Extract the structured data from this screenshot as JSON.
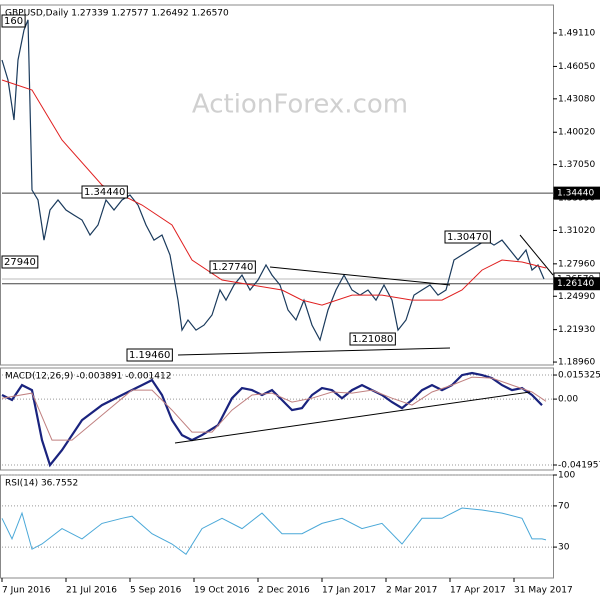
{
  "watermark": "ActionForex.com",
  "chart_data": [
    {
      "type": "line",
      "title": "GBPUSD,Daily  1.27339 1.27577 1.26492 1.26570",
      "ylim": [
        1.1869,
        1.5168
      ],
      "yticks": [
        {
          "value": 1.1896,
          "label": "1.18960"
        },
        {
          "value": 1.2193,
          "label": "1.21930"
        },
        {
          "value": 1.2499,
          "label": "1.24990"
        },
        {
          "value": 1.2796,
          "label": "1.27960"
        },
        {
          "value": 1.3102,
          "label": "1.31020"
        },
        {
          "value": 1.3399,
          "label": "1.33990"
        },
        {
          "value": 1.3705,
          "label": "1.37050"
        },
        {
          "value": 1.4002,
          "label": "1.40020"
        },
        {
          "value": 1.4308,
          "label": "1.43080"
        },
        {
          "value": 1.4605,
          "label": "1.46050"
        },
        {
          "value": 1.4911,
          "label": "1.49110"
        }
      ],
      "levels": [
        {
          "value": 1.3444,
          "label": "1.34440",
          "color": "#000000"
        },
        {
          "value": 1.2657,
          "label": "1.26570",
          "color": "#ffffff"
        },
        {
          "value": 1.2614,
          "label": "1.26140",
          "color": "#000000"
        }
      ],
      "annotations": [
        "160",
        "1.34440",
        "27940",
        "1.27740",
        "1.19460",
        "1.21080",
        "1.30470"
      ],
      "series": [
        {
          "name": "GBPUSD",
          "color": "#1a3a5c",
          "width": 1.2,
          "x": [
            0,
            3,
            6,
            8,
            11,
            13,
            15,
            18,
            21,
            24,
            28,
            32,
            36,
            40,
            44,
            48,
            52,
            56,
            60,
            64,
            68,
            72,
            76,
            80,
            84,
            88,
            90,
            93,
            97,
            101,
            105,
            109,
            112,
            116,
            120,
            124,
            128,
            132,
            135,
            139,
            143,
            147,
            151,
            155,
            159,
            163,
            167,
            171,
            175,
            179,
            183,
            187,
            191,
            195,
            198,
            202,
            206,
            210,
            214,
            218,
            222,
            226,
            230,
            234,
            238,
            242,
            246,
            250,
            254,
            258,
            262,
            265,
            268,
            271
          ],
          "values": [
            1.4664,
            1.4481,
            1.4114,
            1.4664,
            1.4939,
            1.5031,
            1.3473,
            1.3381,
            1.3014,
            1.3289,
            1.3381,
            1.3289,
            1.3243,
            1.3198,
            1.306,
            1.3152,
            1.3381,
            1.3289,
            1.3381,
            1.3427,
            1.3335,
            1.3152,
            1.3014,
            1.306,
            1.2877,
            1.2464,
            1.2189,
            1.2281,
            1.2189,
            1.2235,
            1.2327,
            1.2556,
            1.2464,
            1.2602,
            1.2693,
            1.2556,
            1.2648,
            1.2785,
            1.2693,
            1.2602,
            1.2373,
            1.2281,
            1.2464,
            1.2235,
            1.2098,
            1.2373,
            1.2556,
            1.2693,
            1.2556,
            1.251,
            1.2556,
            1.2464,
            1.2602,
            1.2464,
            1.2189,
            1.2281,
            1.251,
            1.2556,
            1.2602,
            1.251,
            1.2556,
            1.2831,
            1.2877,
            1.2923,
            1.2968,
            1.3014,
            1.2968,
            1.3014,
            1.2923,
            1.2831,
            1.2923,
            1.2739,
            1.2785,
            1.2657
          ]
        },
        {
          "name": "MA",
          "color": "#e02020",
          "width": 1,
          "x": [
            0,
            15,
            30,
            50,
            70,
            85,
            95,
            110,
            125,
            140,
            150,
            160,
            175,
            190,
            205,
            220,
            230,
            240,
            250,
            260,
            272
          ],
          "values": [
            1.4481,
            1.4389,
            1.3931,
            1.3518,
            1.3335,
            1.3152,
            1.2831,
            1.2648,
            1.2602,
            1.2556,
            1.2464,
            1.2418,
            1.251,
            1.251,
            1.2464,
            1.2464,
            1.2556,
            1.2739,
            1.2831,
            1.2813,
            1.2758
          ]
        }
      ]
    },
    {
      "type": "line",
      "title": "MACD(12,26,9) -0.003891 -0.001412",
      "ylim": [
        -0.04514,
        0.0198
      ],
      "yticks": [
        0.015325,
        {
          "value": 0,
          "label": "0.00"
        },
        -0.041957
      ],
      "series": [
        {
          "name": "MACD",
          "color": "#1a237e",
          "width": 2.2,
          "x": [
            0,
            5,
            10,
            15,
            20,
            24,
            30,
            40,
            50,
            60,
            70,
            75,
            80,
            85,
            90,
            95,
            100,
            108,
            115,
            120,
            125,
            130,
            135,
            140,
            145,
            150,
            155,
            160,
            165,
            170,
            175,
            180,
            185,
            190,
            195,
            200,
            205,
            210,
            215,
            220,
            225,
            230,
            235,
            240,
            245,
            250,
            255,
            260,
            265,
            270
          ],
          "values": [
            0.0026,
            -0.0006,
            0.0089,
            0.0057,
            -0.0261,
            -0.042,
            -0.0325,
            -0.0134,
            -0.0038,
            0.0026,
            0.0089,
            0.0121,
            0.0026,
            -0.0134,
            -0.0229,
            -0.0261,
            -0.0229,
            -0.0166,
            0.0006,
            0.007,
            0.0057,
            0.0026,
            0.0057,
            -0.0006,
            -0.007,
            -0.0057,
            0.0026,
            0.007,
            0.0057,
            0.0006,
            0.0057,
            0.0089,
            0.0057,
            0.0026,
            -0.0019,
            -0.0057,
            -0.0006,
            0.0057,
            0.0089,
            0.0057,
            0.0089,
            0.0153,
            0.0166,
            0.0153,
            0.0134,
            0.0089,
            0.0057,
            0.007,
            0.0026,
            -0.0039
          ]
        },
        {
          "name": "Signal",
          "color": "#c08080",
          "width": 1,
          "x": [
            0,
            15,
            25,
            35,
            50,
            65,
            75,
            85,
            95,
            105,
            115,
            125,
            135,
            145,
            155,
            165,
            175,
            185,
            195,
            205,
            215,
            225,
            235,
            245,
            255,
            265,
            272
          ],
          "values": [
            0.0006,
            0.0038,
            -0.0261,
            -0.0261,
            -0.0102,
            0.0057,
            0.0057,
            -0.007,
            -0.021,
            -0.021,
            -0.007,
            0.0026,
            0.0038,
            -0.0019,
            0.0006,
            0.0045,
            0.0038,
            0.0057,
            0.0006,
            -0.0038,
            0.0045,
            0.0089,
            0.014,
            0.0134,
            0.0089,
            0.0045,
            -0.0014
          ]
        }
      ]
    },
    {
      "type": "line",
      "title": "RSI(14) 36.7552",
      "ylim": [
        0,
        100
      ],
      "yticks": [
        100,
        70,
        30
      ],
      "xlim": [
        0,
        272
      ],
      "xticks": [
        {
          "value": 0,
          "label": "7 Jun 2016"
        },
        {
          "value": 32,
          "label": "21 Jul 2016"
        },
        {
          "value": 64,
          "label": "5 Sep 2016"
        },
        {
          "value": 96,
          "label": "19 Oct 2016"
        },
        {
          "value": 128,
          "label": "2 Dec 2016"
        },
        {
          "value": 160,
          "label": "17 Jan 2017"
        },
        {
          "value": 192,
          "label": "2 Mar 2017"
        },
        {
          "value": 224,
          "label": "17 Apr 2017"
        },
        {
          "value": 256,
          "label": "31 May 2017"
        }
      ],
      "series": [
        {
          "name": "RSI",
          "color": "#4aa8d8",
          "width": 1,
          "x": [
            0,
            5,
            10,
            15,
            20,
            30,
            40,
            50,
            60,
            65,
            75,
            85,
            92,
            100,
            110,
            120,
            130,
            140,
            150,
            160,
            170,
            180,
            190,
            200,
            210,
            220,
            230,
            240,
            250,
            260,
            265,
            270,
            272
          ],
          "values": [
            58,
            38,
            63,
            28,
            33,
            48,
            38,
            53,
            58,
            60,
            43,
            33,
            23,
            48,
            58,
            48,
            63,
            43,
            43,
            53,
            58,
            48,
            53,
            33,
            58,
            58,
            68,
            66,
            63,
            58,
            38,
            38,
            37
          ]
        }
      ]
    }
  ]
}
